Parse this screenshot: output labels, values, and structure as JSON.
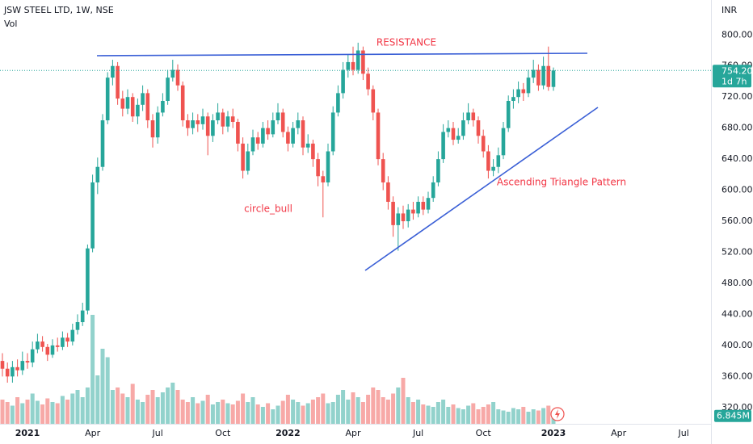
{
  "chart_data": {
    "type": "candlestick",
    "title": "JSW STEEL LTD, 1W, NSE",
    "volume_title": "Vol",
    "currency": "INR",
    "up_color": "#26a69a",
    "down_color": "#ef5350",
    "ylim": [
      299,
      845
    ],
    "yticks": [
      {
        "value": 320,
        "label": "320.00"
      },
      {
        "value": 360,
        "label": "360.00"
      },
      {
        "value": 400,
        "label": "400.00"
      },
      {
        "value": 440,
        "label": "440.00"
      },
      {
        "value": 480,
        "label": "480.00"
      },
      {
        "value": 520,
        "label": "520.00"
      },
      {
        "value": 560,
        "label": "560.00"
      },
      {
        "value": 600,
        "label": "600.00"
      },
      {
        "value": 640,
        "label": "640.00"
      },
      {
        "value": 680,
        "label": "680.00"
      },
      {
        "value": 720,
        "label": "720.00"
      },
      {
        "value": 760,
        "label": "760.00"
      },
      {
        "value": 800,
        "label": "800.00"
      }
    ],
    "categories": [
      null,
      null,
      null,
      null,
      null,
      "2021",
      null,
      null,
      null,
      null,
      null,
      null,
      null,
      null,
      null,
      null,
      null,
      null,
      "Apr",
      null,
      null,
      null,
      null,
      null,
      null,
      null,
      null,
      null,
      null,
      null,
      null,
      "Jul",
      null,
      null,
      null,
      null,
      null,
      null,
      null,
      null,
      null,
      null,
      null,
      null,
      "Oct",
      null,
      null,
      null,
      null,
      null,
      null,
      null,
      null,
      null,
      null,
      null,
      null,
      "2022",
      null,
      null,
      null,
      null,
      null,
      null,
      null,
      null,
      null,
      null,
      null,
      null,
      "Apr",
      null,
      null,
      null,
      null,
      null,
      null,
      null,
      null,
      null,
      null,
      null,
      null,
      "Jul",
      null,
      null,
      null,
      null,
      null,
      null,
      null,
      null,
      null,
      null,
      null,
      null,
      "Oct",
      null,
      null,
      null,
      null,
      null,
      null,
      null,
      null,
      null,
      null,
      null,
      null,
      null,
      "2023",
      null,
      null,
      null,
      null,
      null,
      null,
      null,
      null,
      null,
      null,
      null,
      null,
      "Apr",
      null,
      null,
      null,
      null,
      null,
      null,
      null,
      null,
      null,
      null,
      null,
      null,
      "Jul",
      null,
      null,
      null,
      null
    ],
    "open": [
      380,
      370,
      360,
      372,
      368,
      380,
      378,
      395,
      405,
      398,
      388,
      400,
      398,
      410,
      405,
      420,
      430,
      445,
      525,
      610,
      630,
      690,
      745,
      760,
      718,
      705,
      720,
      695,
      710,
      725,
      690,
      668,
      700,
      715,
      745,
      755,
      735,
      690,
      680,
      690,
      685,
      695,
      670,
      690,
      700,
      682,
      695,
      688,
      660,
      625,
      650,
      668,
      660,
      680,
      672,
      690,
      700,
      675,
      660,
      680,
      690,
      655,
      660,
      640,
      618,
      610,
      650,
      700,
      725,
      755,
      765,
      755,
      780,
      750,
      730,
      700,
      640,
      610,
      585,
      555,
      570,
      560,
      575,
      570,
      585,
      575,
      590,
      610,
      640,
      675,
      680,
      665,
      670,
      690,
      700,
      690,
      670,
      650,
      625,
      630,
      645,
      680,
      715,
      720,
      730,
      725,
      745,
      755,
      735,
      760,
      733,
      null,
      null,
      null,
      null,
      null,
      null,
      null,
      null,
      null,
      null,
      null,
      null,
      null,
      null,
      null,
      null,
      null,
      null,
      null,
      null,
      null,
      null,
      null,
      null,
      null,
      null,
      null,
      null,
      null,
      null
    ],
    "high": [
      390,
      378,
      380,
      382,
      392,
      390,
      405,
      415,
      412,
      402,
      408,
      410,
      418,
      416,
      428,
      440,
      455,
      530,
      620,
      642,
      698,
      752,
      768,
      765,
      728,
      730,
      725,
      718,
      735,
      730,
      698,
      708,
      725,
      755,
      768,
      762,
      740,
      698,
      700,
      698,
      705,
      700,
      698,
      712,
      705,
      702,
      705,
      692,
      668,
      660,
      678,
      675,
      688,
      690,
      700,
      712,
      705,
      682,
      688,
      700,
      695,
      672,
      665,
      648,
      625,
      660,
      708,
      735,
      765,
      775,
      785,
      790,
      785,
      758,
      735,
      705,
      648,
      618,
      592,
      578,
      580,
      582,
      585,
      592,
      592,
      598,
      618,
      650,
      685,
      690,
      688,
      680,
      700,
      712,
      705,
      695,
      678,
      658,
      640,
      655,
      688,
      722,
      730,
      740,
      738,
      755,
      768,
      762,
      772,
      785,
      758,
      null,
      null,
      null,
      null,
      null,
      null,
      null,
      null,
      null,
      null,
      null,
      null,
      null,
      null,
      null,
      null,
      null,
      null,
      null,
      null,
      null,
      null,
      null,
      null,
      null,
      null,
      null,
      null,
      null,
      null
    ],
    "low": [
      360,
      352,
      352,
      360,
      362,
      370,
      372,
      390,
      392,
      380,
      384,
      392,
      394,
      398,
      400,
      414,
      425,
      440,
      520,
      595,
      625,
      685,
      735,
      710,
      695,
      698,
      688,
      685,
      702,
      680,
      655,
      660,
      695,
      710,
      740,
      728,
      682,
      670,
      672,
      675,
      678,
      645,
      662,
      685,
      672,
      675,
      680,
      650,
      615,
      620,
      645,
      652,
      655,
      665,
      668,
      685,
      668,
      650,
      655,
      672,
      645,
      648,
      630,
      605,
      565,
      605,
      645,
      695,
      718,
      745,
      748,
      750,
      742,
      722,
      690,
      632,
      600,
      575,
      540,
      522,
      550,
      552,
      562,
      565,
      568,
      570,
      585,
      605,
      635,
      668,
      658,
      660,
      665,
      685,
      682,
      660,
      642,
      615,
      618,
      622,
      640,
      675,
      705,
      712,
      715,
      720,
      738,
      728,
      730,
      728,
      728,
      null,
      null,
      null,
      null,
      null,
      null,
      null,
      null,
      null,
      null,
      null,
      null,
      null,
      null,
      null,
      null,
      null,
      null,
      null,
      null,
      null,
      null,
      null,
      null,
      null,
      null,
      null,
      null,
      null,
      null
    ],
    "close": [
      370,
      360,
      372,
      368,
      380,
      378,
      395,
      405,
      398,
      388,
      400,
      398,
      410,
      405,
      420,
      430,
      445,
      525,
      610,
      630,
      690,
      745,
      760,
      718,
      705,
      720,
      695,
      710,
      725,
      690,
      668,
      700,
      715,
      745,
      755,
      735,
      690,
      680,
      690,
      685,
      695,
      670,
      690,
      700,
      682,
      695,
      688,
      660,
      625,
      650,
      668,
      660,
      680,
      672,
      690,
      700,
      675,
      660,
      680,
      690,
      655,
      660,
      640,
      618,
      610,
      650,
      700,
      725,
      755,
      765,
      755,
      780,
      750,
      730,
      700,
      640,
      610,
      585,
      555,
      570,
      560,
      575,
      570,
      585,
      575,
      590,
      610,
      640,
      675,
      680,
      665,
      670,
      690,
      700,
      690,
      670,
      650,
      625,
      630,
      645,
      680,
      715,
      720,
      730,
      725,
      745,
      755,
      735,
      760,
      733,
      754.2,
      null,
      null,
      null,
      null,
      null,
      null,
      null,
      null,
      null,
      null,
      null,
      null,
      null,
      null,
      null,
      null,
      null,
      null,
      null,
      null,
      null,
      null,
      null,
      null,
      null,
      null,
      null,
      null,
      null,
      null
    ],
    "volume": [
      20,
      18,
      15,
      22,
      17,
      20,
      25,
      19,
      16,
      21,
      18,
      17,
      23,
      20,
      25,
      28,
      22,
      30,
      90,
      40,
      62,
      55,
      28,
      30,
      25,
      22,
      33,
      20,
      18,
      24,
      28,
      22,
      26,
      30,
      34,
      28,
      20,
      18,
      22,
      17,
      19,
      24,
      16,
      18,
      20,
      17,
      16,
      19,
      25,
      18,
      22,
      16,
      14,
      17,
      12,
      15,
      19,
      24,
      20,
      18,
      15,
      17,
      20,
      22,
      25,
      17,
      18,
      24,
      28,
      20,
      26,
      22,
      18,
      24,
      30,
      28,
      22,
      20,
      25,
      30,
      38,
      22,
      18,
      20,
      16,
      15,
      14,
      18,
      20,
      14,
      16,
      13,
      12,
      15,
      17,
      12,
      14,
      16,
      18,
      12,
      11,
      10,
      13,
      12,
      14,
      10,
      12,
      11,
      13,
      15,
      6.845,
      null,
      null,
      null,
      null,
      null,
      null,
      null,
      null,
      null,
      null,
      null,
      null,
      null,
      null,
      null,
      null,
      null,
      null,
      null,
      null,
      null,
      null,
      null,
      null,
      null,
      null,
      null,
      null,
      null,
      null
    ],
    "price_marker": {
      "value": 754.2,
      "label": "754.20"
    },
    "countdown": "1d 7h",
    "volume_marker": {
      "value": 6.845,
      "label": "6.845M"
    },
    "annotations": {
      "resistance": "RESISTANCE",
      "pattern": "Ascending Triangle Pattern",
      "circle": "circle_bull"
    }
  }
}
